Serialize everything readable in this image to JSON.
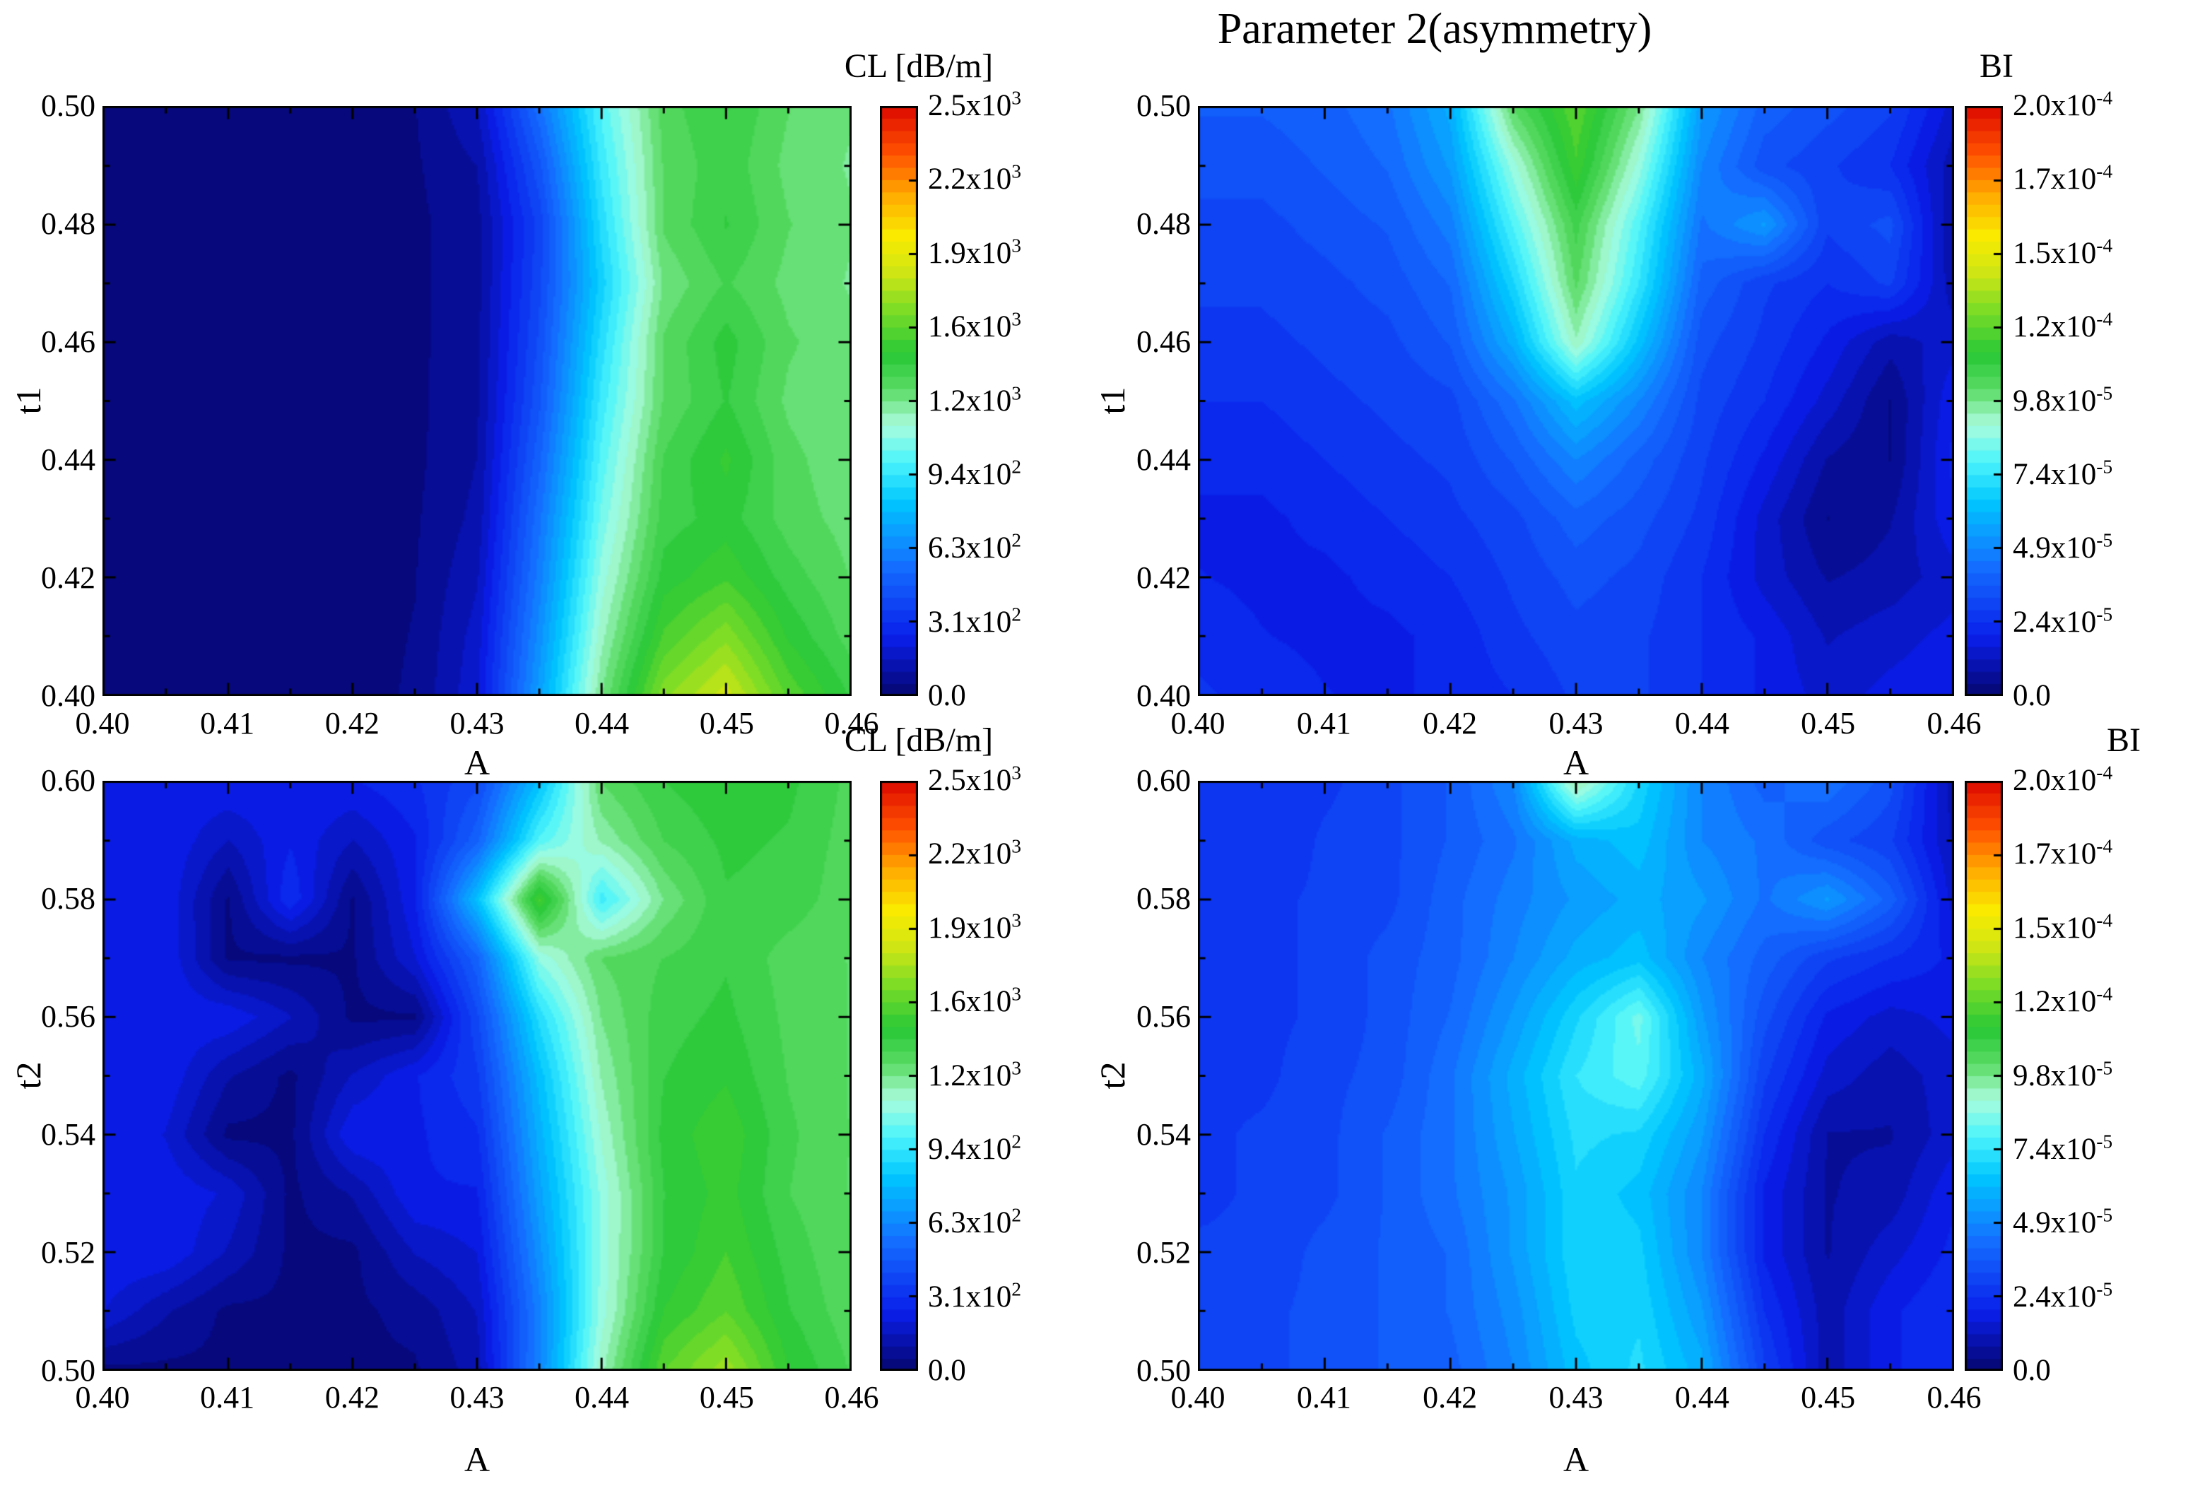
{
  "title": "Parameter 2(asymmetry)",
  "colormap_stops": [
    {
      "p": 0.0,
      "c": "#06066E"
    },
    {
      "p": 0.1,
      "c": "#0A1EEB"
    },
    {
      "p": 0.22,
      "c": "#146EFF"
    },
    {
      "p": 0.33,
      "c": "#00C8FF"
    },
    {
      "p": 0.4,
      "c": "#50F5FA"
    },
    {
      "p": 0.46,
      "c": "#AAFCDC"
    },
    {
      "p": 0.52,
      "c": "#5ADC64"
    },
    {
      "p": 0.58,
      "c": "#28C837"
    },
    {
      "p": 0.65,
      "c": "#78DC28"
    },
    {
      "p": 0.72,
      "c": "#D2E614"
    },
    {
      "p": 0.78,
      "c": "#FAEB00"
    },
    {
      "p": 0.85,
      "c": "#FFAA00"
    },
    {
      "p": 0.92,
      "c": "#FF5000"
    },
    {
      "p": 1.0,
      "c": "#DC0A00"
    }
  ],
  "colorbar_labels": {
    "cl": [
      {
        "b": "0.0",
        "e": ""
      },
      {
        "b": "3.1x10",
        "e": "2"
      },
      {
        "b": "6.3x10",
        "e": "2"
      },
      {
        "b": "9.4x10",
        "e": "2"
      },
      {
        "b": "1.2x10",
        "e": "3"
      },
      {
        "b": "1.6x10",
        "e": "3"
      },
      {
        "b": "1.9x10",
        "e": "3"
      },
      {
        "b": "2.2x10",
        "e": "3"
      },
      {
        "b": "2.5x10",
        "e": "3"
      }
    ],
    "bi": [
      {
        "b": "0.0",
        "e": ""
      },
      {
        "b": "2.4x10",
        "e": "-5"
      },
      {
        "b": "4.9x10",
        "e": "-5"
      },
      {
        "b": "7.4x10",
        "e": "-5"
      },
      {
        "b": "9.8x10",
        "e": "-5"
      },
      {
        "b": "1.2x10",
        "e": "-4"
      },
      {
        "b": "1.5x10",
        "e": "-4"
      },
      {
        "b": "1.7x10",
        "e": "-4"
      },
      {
        "b": "2.0x10",
        "e": "-4"
      }
    ]
  },
  "chart_data": [
    {
      "type": "heatmap",
      "name": "CL-vs-A-and-t1",
      "xlabel": "A",
      "ylabel": "t1",
      "zlabel": "CL [dB/m]",
      "x_range": [
        0.4,
        0.46
      ],
      "y_range": [
        0.4,
        0.5
      ],
      "z_range": [
        0,
        2500
      ],
      "z_unit_scale": 1,
      "x_tick_labels": [
        "0.40",
        "0.41",
        "0.42",
        "0.43",
        "0.44",
        "0.45",
        "0.46"
      ],
      "y_tick_labels": [
        "0.40",
        "0.42",
        "0.44",
        "0.46",
        "0.48",
        "0.50"
      ],
      "grid_order": "rows from y_min (bottom) to y_max (top), cols from x_min to x_max",
      "grid": [
        [
          30,
          30,
          30,
          30,
          30,
          60,
          200,
          700,
          1250,
          1650,
          1800,
          1550,
          1400
        ],
        [
          30,
          30,
          30,
          30,
          30,
          55,
          180,
          650,
          1180,
          1520,
          1650,
          1450,
          1330
        ],
        [
          30,
          30,
          30,
          30,
          30,
          50,
          150,
          600,
          1120,
          1430,
          1500,
          1380,
          1300
        ],
        [
          30,
          30,
          30,
          30,
          30,
          45,
          120,
          560,
          1060,
          1380,
          1430,
          1330,
          1280
        ],
        [
          30,
          30,
          30,
          30,
          30,
          40,
          105,
          510,
          1010,
          1360,
          1470,
          1320,
          1260
        ],
        [
          30,
          30,
          30,
          30,
          30,
          40,
          95,
          460,
          960,
          1310,
          1410,
          1290,
          1255
        ],
        [
          30,
          30,
          30,
          30,
          30,
          40,
          90,
          430,
          910,
          1310,
          1430,
          1310,
          1265
        ],
        [
          30,
          30,
          30,
          30,
          30,
          40,
          85,
          405,
          860,
          1260,
          1360,
          1285,
          1245
        ],
        [
          30,
          30,
          30,
          30,
          30,
          40,
          85,
          385,
          905,
          1310,
          1410,
          1305,
          1255
        ],
        [
          30,
          30,
          30,
          30,
          30,
          45,
          105,
          455,
          955,
          1310,
          1390,
          1285,
          1245
        ],
        [
          30,
          30,
          30,
          30,
          30,
          50,
          155,
          555,
          1005,
          1330,
          1410,
          1305,
          1255
        ]
      ]
    },
    {
      "type": "heatmap",
      "name": "BI-vs-A-and-t1",
      "xlabel": "A",
      "ylabel": "t1",
      "zlabel": "BI",
      "x_range": [
        0.4,
        0.46
      ],
      "y_range": [
        0.4,
        0.5
      ],
      "z_range": [
        0,
        0.0002
      ],
      "z_unit_scale": 1e-05,
      "x_tick_labels": [
        "0.40",
        "0.41",
        "0.42",
        "0.43",
        "0.44",
        "0.45",
        "0.46"
      ],
      "y_tick_labels": [
        "0.40",
        "0.42",
        "0.44",
        "0.46",
        "0.48",
        "0.50"
      ],
      "grid_order": "rows from y_min (bottom) to y_max (top), values in units of 1e-5",
      "grid": [
        [
          2.6,
          2.3,
          2.1,
          2.0,
          2.2,
          2.5,
          3.0,
          3.0,
          2.5,
          2.0,
          1.5,
          1.8,
          2.0
        ],
        [
          2.3,
          2.1,
          2.0,
          2.0,
          2.2,
          2.8,
          3.2,
          3.0,
          2.5,
          2.0,
          1.2,
          1.5,
          1.8
        ],
        [
          2.1,
          2.0,
          2.0,
          2.2,
          2.5,
          3.0,
          3.5,
          3.2,
          2.5,
          1.5,
          0.8,
          1.0,
          1.5
        ],
        [
          2.0,
          2.0,
          2.2,
          2.5,
          2.8,
          3.2,
          4.0,
          3.5,
          2.8,
          1.5,
          0.4,
          0.8,
          2.0
        ],
        [
          2.2,
          2.2,
          2.5,
          2.8,
          3.0,
          3.8,
          5.0,
          4.0,
          3.0,
          2.0,
          0.8,
          0.4,
          2.2
        ],
        [
          2.5,
          2.5,
          2.8,
          3.0,
          3.2,
          4.5,
          6.5,
          5.0,
          3.2,
          2.5,
          1.5,
          0.4,
          2.0
        ],
        [
          2.8,
          2.8,
          3.0,
          3.2,
          3.8,
          6.0,
          9.5,
          6.5,
          3.5,
          2.8,
          2.0,
          1.0,
          1.5
        ],
        [
          3.0,
          3.0,
          3.2,
          3.5,
          4.2,
          7.0,
          10.5,
          7.5,
          4.0,
          3.0,
          2.5,
          3.0,
          1.0
        ],
        [
          3.2,
          3.2,
          3.5,
          3.8,
          4.8,
          8.0,
          11.0,
          8.0,
          4.5,
          5.5,
          3.0,
          3.5,
          0.8
        ],
        [
          3.5,
          3.5,
          3.8,
          4.2,
          5.5,
          9.0,
          12.0,
          9.0,
          5.0,
          3.5,
          3.0,
          2.5,
          1.0
        ],
        [
          3.8,
          3.8,
          4.0,
          4.5,
          6.0,
          10.5,
          12.5,
          10.0,
          5.5,
          4.0,
          3.5,
          3.0,
          1.5
        ]
      ]
    },
    {
      "type": "heatmap",
      "name": "CL-vs-A-and-t2",
      "xlabel": "A",
      "ylabel": "t2",
      "zlabel": "CL [dB/m]",
      "x_range": [
        0.4,
        0.46
      ],
      "y_range": [
        0.5,
        0.6
      ],
      "z_range": [
        0,
        2500
      ],
      "z_unit_scale": 1,
      "x_tick_labels": [
        "0.40",
        "0.41",
        "0.42",
        "0.43",
        "0.44",
        "0.45",
        "0.46"
      ],
      "y_tick_labels": [
        "0.50",
        "0.52",
        "0.54",
        "0.56",
        "0.58",
        "0.60"
      ],
      "grid_order": "rows from y_min (bottom) to y_max (top), cols from x_min to x_max",
      "grid": [
        [
          40,
          40,
          40,
          40,
          40,
          45,
          130,
          620,
          1180,
          1560,
          1700,
          1460,
          1350
        ],
        [
          210,
          110,
          40,
          40,
          40,
          70,
          160,
          610,
          1120,
          1460,
          1560,
          1410,
          1320
        ],
        [
          260,
          255,
          150,
          40,
          40,
          160,
          210,
          660,
          1110,
          1410,
          1510,
          1385,
          1305
        ],
        [
          255,
          250,
          200,
          40,
          110,
          255,
          255,
          710,
          1110,
          1405,
          1480,
          1355,
          1300
        ],
        [
          255,
          205,
          40,
          40,
          255,
          250,
          305,
          755,
          1155,
          1425,
          1500,
          1365,
          1300
        ],
        [
          250,
          250,
          110,
          40,
          160,
          255,
          355,
          805,
          1205,
          1405,
          1450,
          1350,
          1300
        ],
        [
          255,
          250,
          250,
          160,
          40,
          45,
          405,
          905,
          1255,
          1385,
          1420,
          1340,
          1300
        ],
        [
          250,
          255,
          45,
          40,
          45,
          205,
          505,
          1105,
          1305,
          1355,
          1400,
          1330,
          1300
        ],
        [
          255,
          250,
          45,
          305,
          45,
          255,
          805,
          1520,
          960,
          1255,
          1400,
          1385,
          1320
        ],
        [
          250,
          255,
          155,
          255,
          155,
          255,
          505,
          1005,
          1205,
          1355,
          1420,
          1400,
          1330
        ],
        [
          255,
          250,
          255,
          255,
          255,
          305,
          405,
          805,
          1305,
          1405,
          1450,
          1420,
          1340
        ]
      ]
    },
    {
      "type": "heatmap",
      "name": "BI-vs-A-and-t2",
      "xlabel": "A",
      "ylabel": "t2",
      "zlabel": "BI",
      "x_range": [
        0.4,
        0.46
      ],
      "y_range": [
        0.5,
        0.6
      ],
      "z_range": [
        0,
        0.0002
      ],
      "z_unit_scale": 1e-05,
      "x_tick_labels": [
        "0.40",
        "0.41",
        "0.42",
        "0.43",
        "0.44",
        "0.45",
        "0.46"
      ],
      "y_tick_labels": [
        "0.50",
        "0.52",
        "0.54",
        "0.56",
        "0.58",
        "0.60"
      ],
      "grid_order": "rows from y_min (bottom) to y_max (top), values in units of 1e-5",
      "grid": [
        [
          3.0,
          3.2,
          3.5,
          3.8,
          4.0,
          5.0,
          6.5,
          7.2,
          6.0,
          3.0,
          1.0,
          2.0,
          2.5
        ],
        [
          3.0,
          3.2,
          3.5,
          3.8,
          4.2,
          5.2,
          6.8,
          7.0,
          5.5,
          2.5,
          1.0,
          2.0,
          2.5
        ],
        [
          3.0,
          3.0,
          3.5,
          3.8,
          4.2,
          5.5,
          7.0,
          6.8,
          5.0,
          2.0,
          0.8,
          1.5,
          2.2
        ],
        [
          2.8,
          3.0,
          3.2,
          3.8,
          4.5,
          5.5,
          7.0,
          6.5,
          5.0,
          2.0,
          0.8,
          1.0,
          2.0
        ],
        [
          2.8,
          3.0,
          3.2,
          3.8,
          4.5,
          5.8,
          7.2,
          7.0,
          5.5,
          2.5,
          0.8,
          0.8,
          1.5
        ],
        [
          2.8,
          2.8,
          3.2,
          3.5,
          4.5,
          6.0,
          7.5,
          8.2,
          6.0,
          3.0,
          1.5,
          1.0,
          1.5
        ],
        [
          2.5,
          2.8,
          3.0,
          3.5,
          4.2,
          5.5,
          7.0,
          8.5,
          5.5,
          3.5,
          2.0,
          1.5,
          1.8
        ],
        [
          2.5,
          2.8,
          3.0,
          3.5,
          4.0,
          5.0,
          6.0,
          6.5,
          5.0,
          4.0,
          3.0,
          2.5,
          2.0
        ],
        [
          2.5,
          2.8,
          3.0,
          3.2,
          4.0,
          4.8,
          5.5,
          6.0,
          5.5,
          4.5,
          5.5,
          4.0,
          1.5
        ],
        [
          2.5,
          2.5,
          3.0,
          3.2,
          3.8,
          4.5,
          6.0,
          6.5,
          5.0,
          4.5,
          3.5,
          3.0,
          1.2
        ],
        [
          2.5,
          2.5,
          2.8,
          3.2,
          3.8,
          5.0,
          9.8,
          7.0,
          5.0,
          4.0,
          4.5,
          3.5,
          1.0
        ]
      ]
    }
  ]
}
